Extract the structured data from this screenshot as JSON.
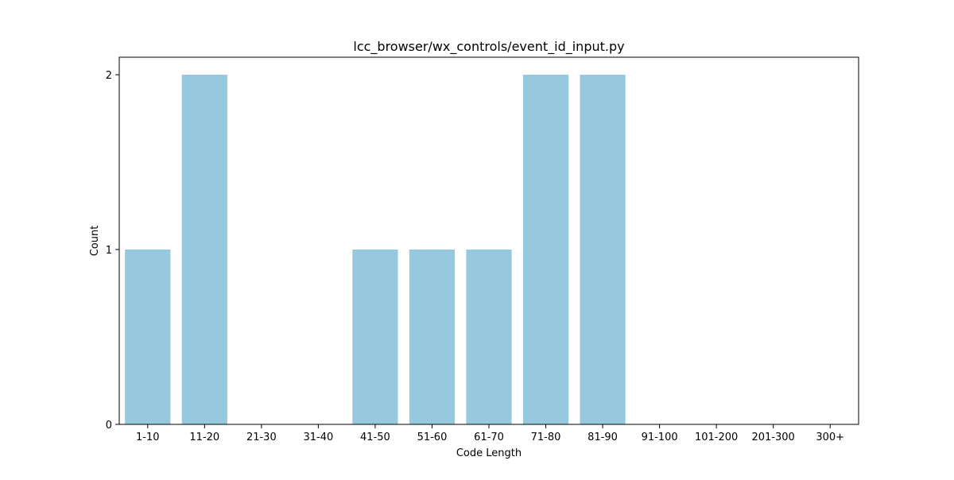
{
  "chart_data": {
    "type": "bar",
    "title": "lcc_browser/wx_controls/event_id_input.py",
    "xlabel": "Code Length",
    "ylabel": "Count",
    "categories": [
      "1-10",
      "11-20",
      "21-30",
      "31-40",
      "41-50",
      "51-60",
      "61-70",
      "71-80",
      "81-90",
      "91-100",
      "101-200",
      "201-300",
      "300+"
    ],
    "values": [
      1,
      2,
      0,
      0,
      1,
      1,
      1,
      2,
      2,
      0,
      0,
      0,
      0
    ],
    "ylim": [
      0,
      2.1
    ],
    "yticks": [
      0,
      1,
      2
    ],
    "bar_color": "#96c9de",
    "grid": false,
    "legend": "none"
  }
}
